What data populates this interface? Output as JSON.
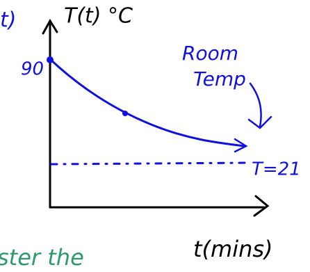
{
  "labels": {
    "left_fragment": "t)",
    "y_axis": "T(t) °C",
    "start_value": "90",
    "room_line1": "Room",
    "room_line2": "Temp",
    "room_value": "T=21",
    "x_axis": "t(mins)",
    "bottom_fragment": "ster the"
  }
}
